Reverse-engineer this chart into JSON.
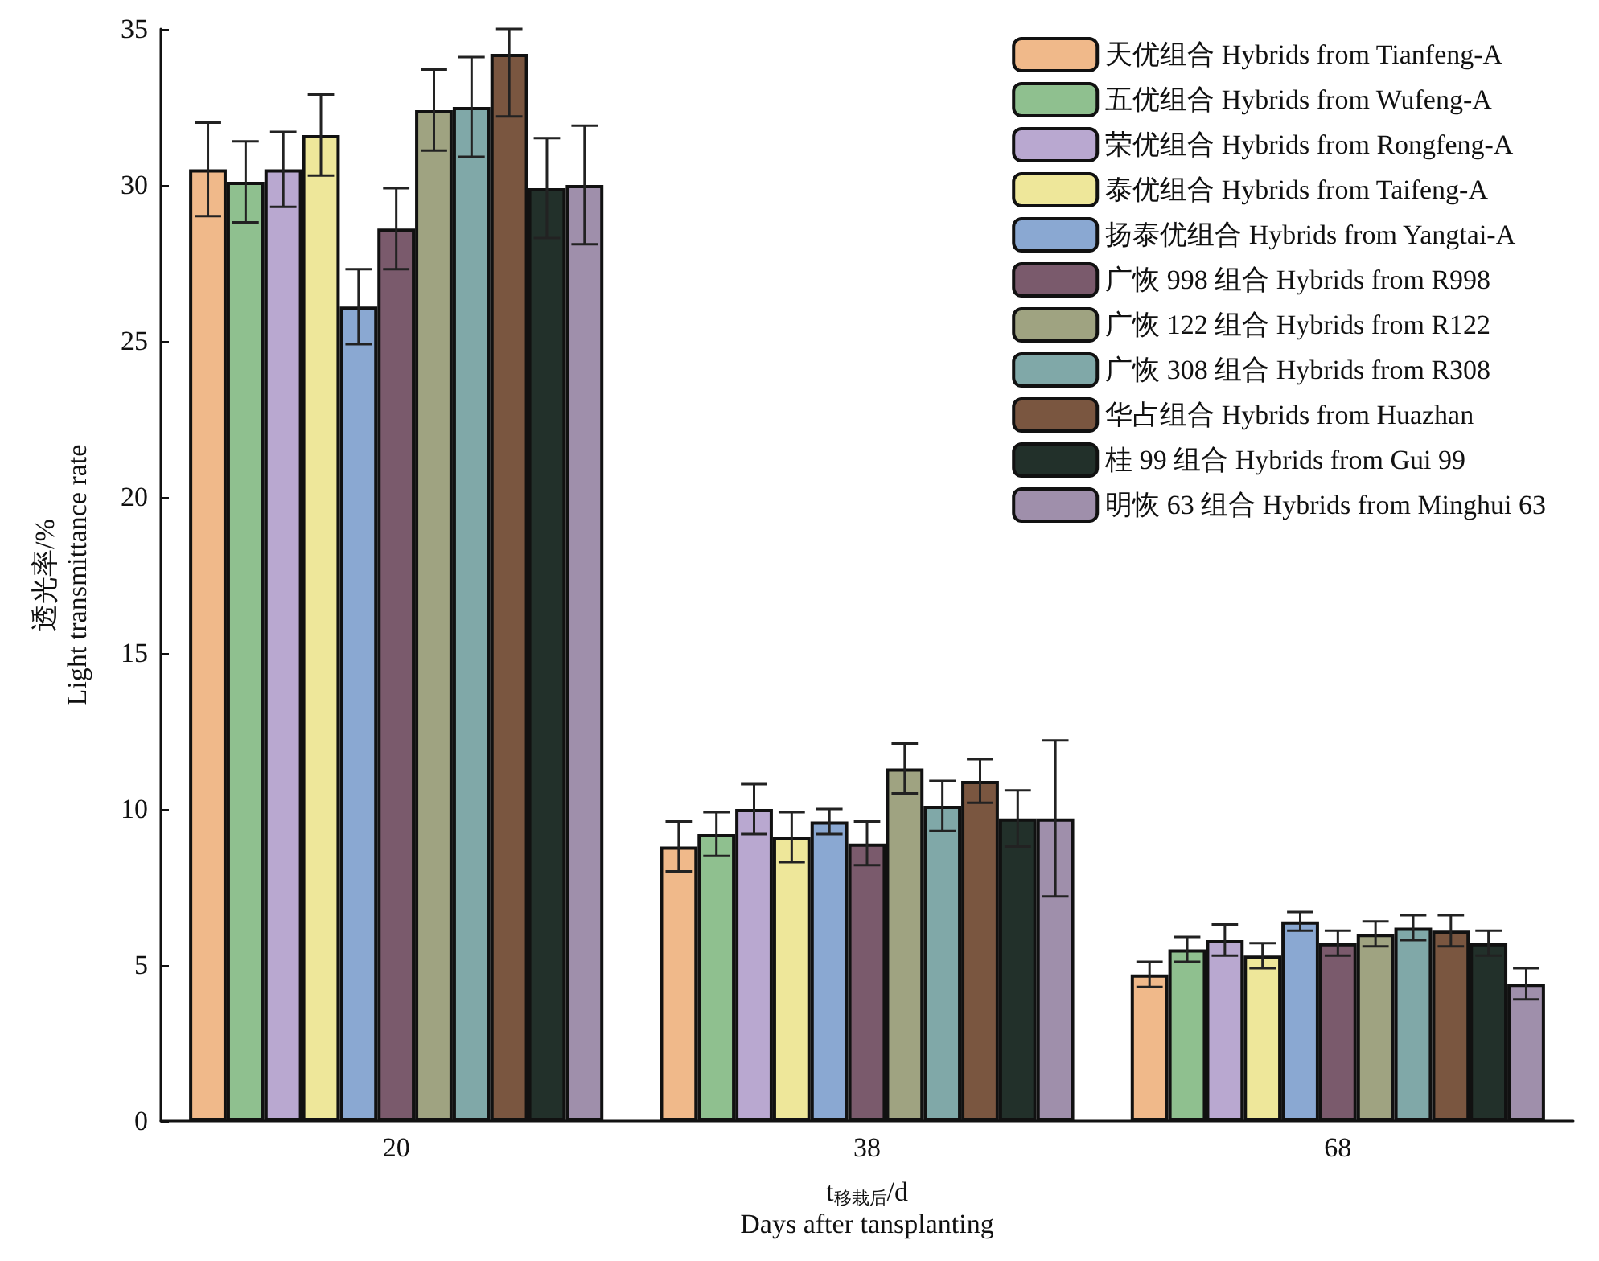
{
  "chart_data": {
    "type": "bar",
    "xlabel": "t$_{移栽后}$/d\nDays after tansplanting",
    "ylabel": "透光率/%\nLight transmittance rate",
    "categories": [
      "20",
      "38",
      "68"
    ],
    "ylim": [
      0,
      35
    ],
    "yticks": [
      0,
      5,
      10,
      15,
      20,
      25,
      30,
      35
    ],
    "grid": false,
    "legend": "top right",
    "series": [
      {
        "name": "天优组合 Hybrids from Tianfeng-A",
        "color": "#f0b98a",
        "values": [
          30.5,
          8.8,
          4.7
        ],
        "errors": [
          1.5,
          0.8,
          0.4
        ]
      },
      {
        "name": "五优组合 Hybrids from Wufeng-A",
        "color": "#8fc08f",
        "values": [
          30.1,
          9.2,
          5.5
        ],
        "errors": [
          1.3,
          0.7,
          0.4
        ]
      },
      {
        "name": "荣优组合 Hybrids from Rongfeng-A",
        "color": "#b9a8d0",
        "values": [
          30.5,
          10.0,
          5.8
        ],
        "errors": [
          1.2,
          0.8,
          0.5
        ]
      },
      {
        "name": "泰优组合 Hybrids from Taifeng-A",
        "color": "#eee79a",
        "values": [
          31.6,
          9.1,
          5.3
        ],
        "errors": [
          1.3,
          0.8,
          0.4
        ]
      },
      {
        "name": "扬泰优组合 Hybrids from Yangtai-A",
        "color": "#8aa8d2",
        "values": [
          26.1,
          9.6,
          6.4
        ],
        "errors": [
          1.2,
          0.4,
          0.3
        ]
      },
      {
        "name": "广恢 998 组合 Hybrids from R998",
        "color": "#7a5a6c",
        "values": [
          28.6,
          8.9,
          5.7
        ],
        "errors": [
          1.3,
          0.7,
          0.4
        ]
      },
      {
        "name": "广恢 122 组合 Hybrids from R122",
        "color": "#9fa381",
        "values": [
          32.4,
          11.3,
          6.0
        ],
        "errors": [
          1.3,
          0.8,
          0.4
        ]
      },
      {
        "name": "广恢 308 组合 Hybrids from R308",
        "color": "#80a8a8",
        "values": [
          32.5,
          10.1,
          6.2
        ],
        "errors": [
          1.6,
          0.8,
          0.4
        ]
      },
      {
        "name": "华占组合 Hybrids from Huazhan",
        "color": "#7a5640",
        "values": [
          34.2,
          10.9,
          6.1
        ],
        "errors": [
          [
            32.2,
            35
          ],
          0.7,
          0.5
        ]
      },
      {
        "name": "桂 99 组合 Hybrids from Gui 99",
        "color": "#22302a",
        "values": [
          29.9,
          9.7,
          5.7
        ],
        "errors": [
          1.6,
          0.9,
          0.4
        ]
      },
      {
        "name": "明恢 63 组合 Hybrids from Minghui 63",
        "color": "#9f8fab",
        "values": [
          30.0,
          9.7,
          4.4
        ],
        "errors": [
          1.9,
          2.5,
          0.5
        ]
      }
    ]
  }
}
